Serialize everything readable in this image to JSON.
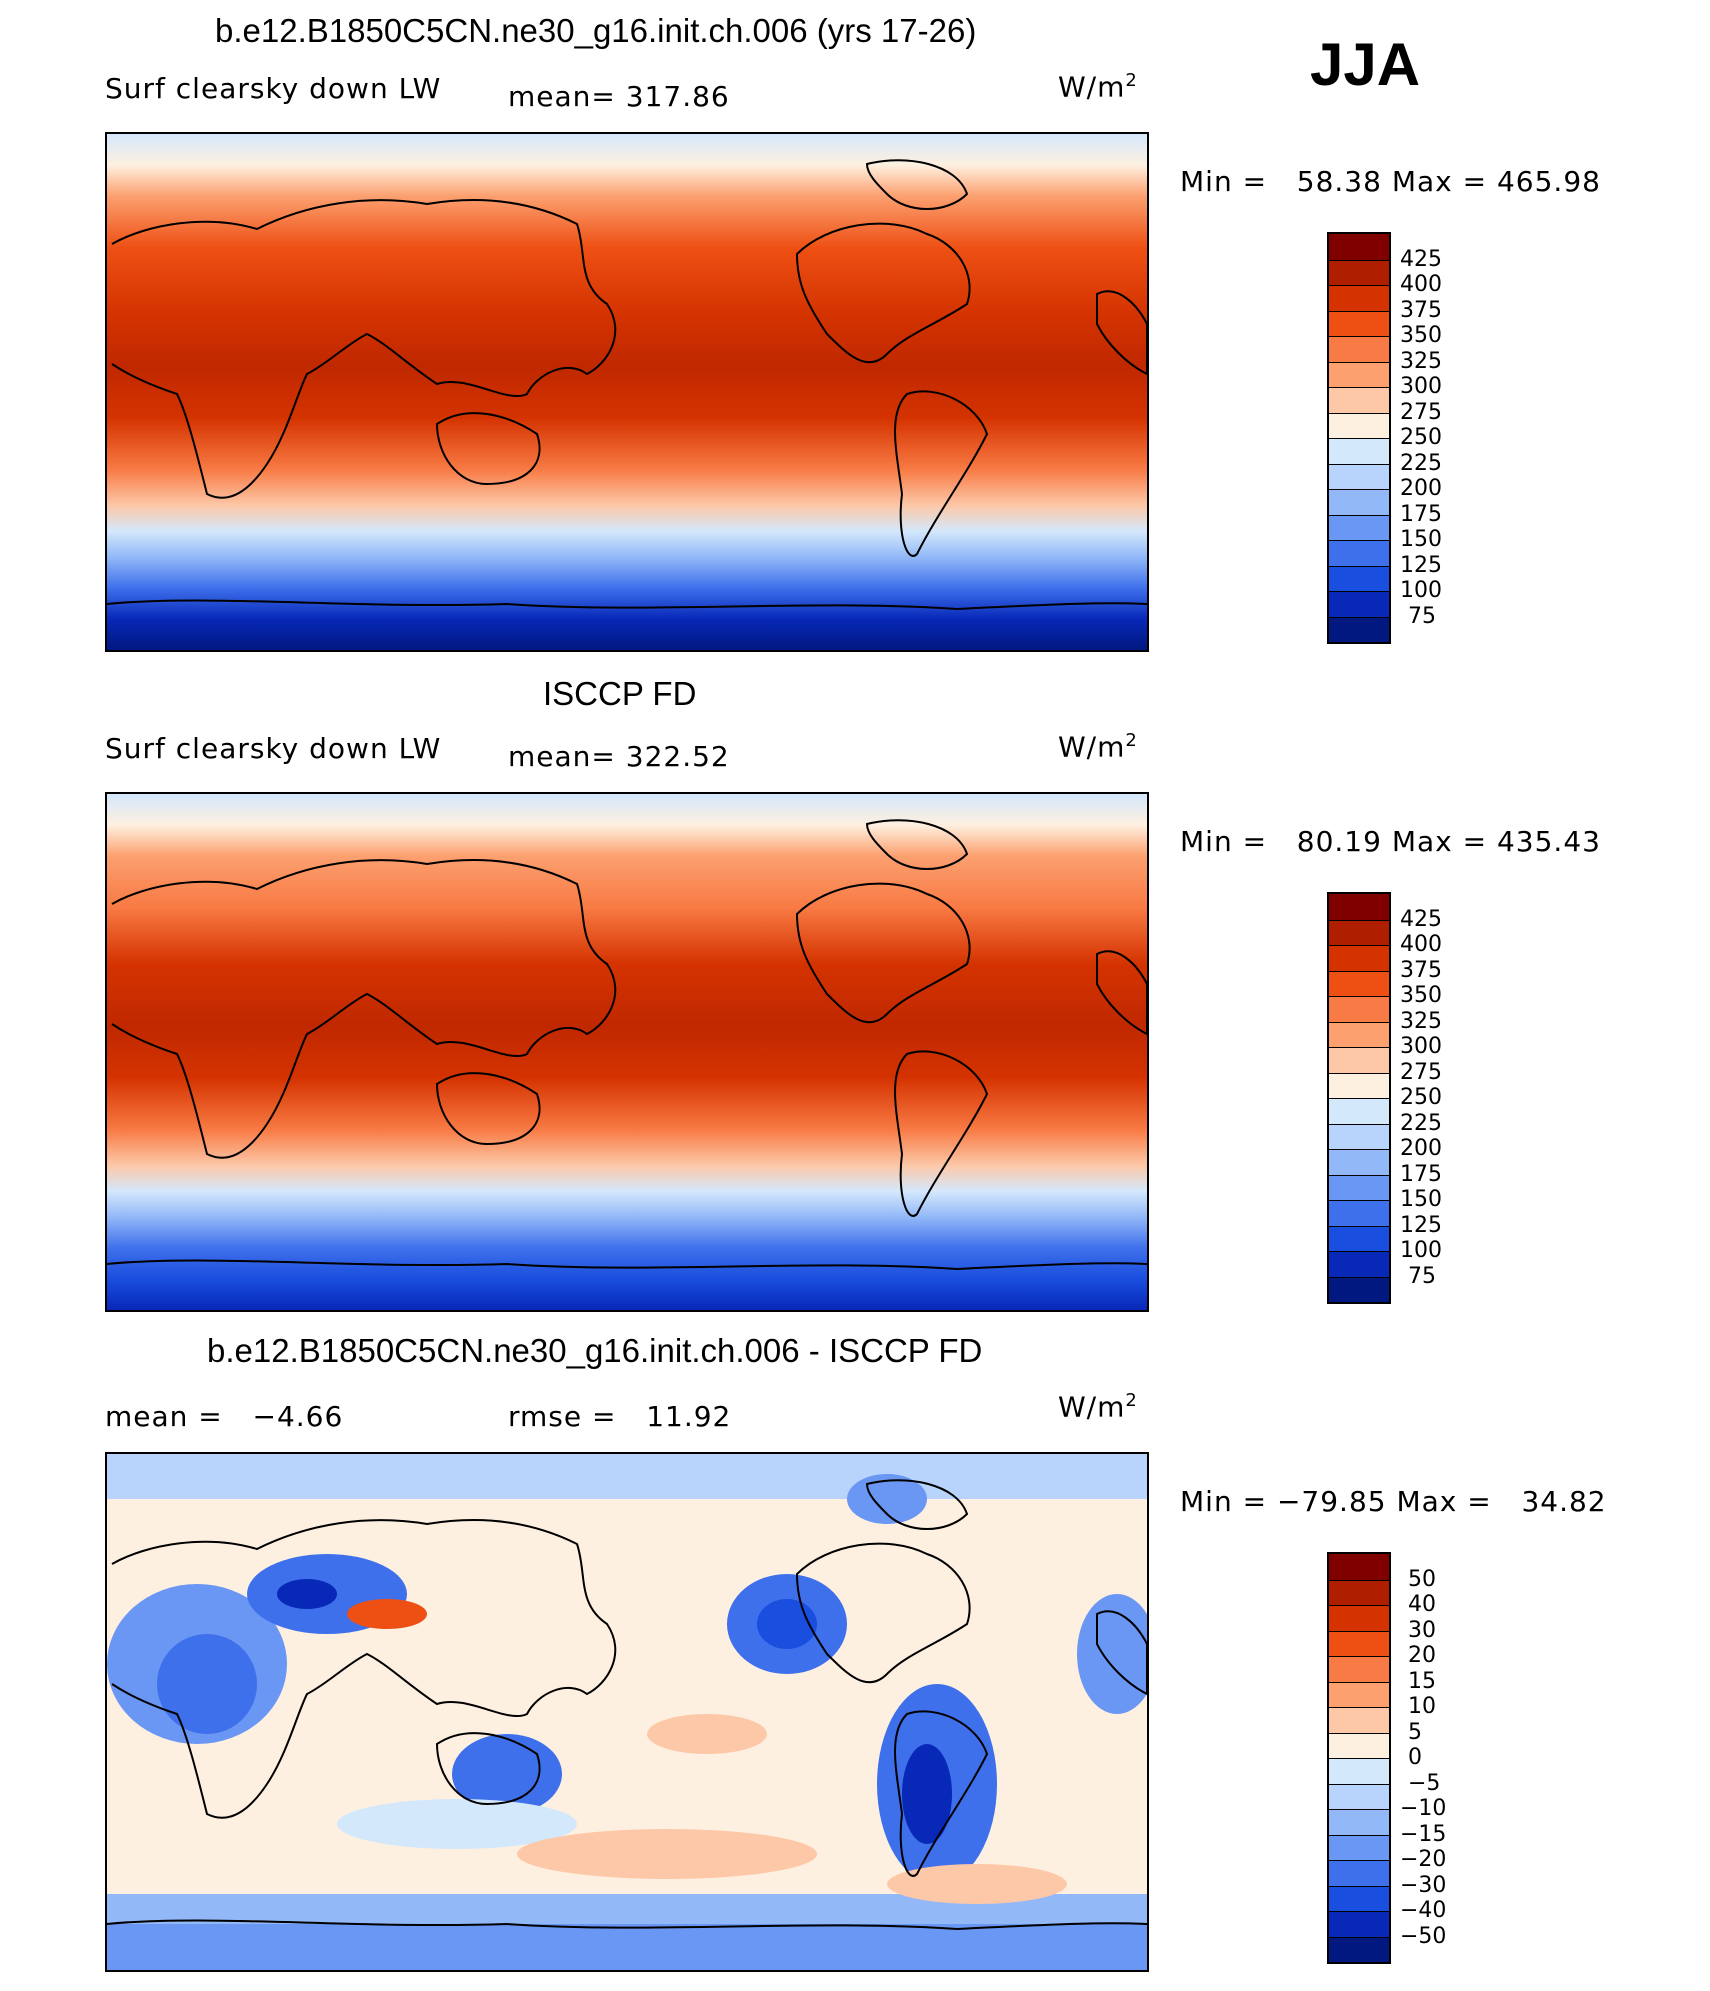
{
  "season": "JJA",
  "units_base": "W/m",
  "units_exp": "2",
  "panels": [
    {
      "title": "b.e12.B1850C5CN.ne30_g16.init.ch.006 (yrs 17-26)",
      "variable": "Surf clearsky down LW",
      "stat_text": "mean= 317.86",
      "min_label": "Min =",
      "min": "58.38",
      "max_label": "Max =",
      "max": "465.98",
      "colorbar_labels": [
        "425",
        "400",
        "375",
        "350",
        "325",
        "300",
        "275",
        "250",
        "225",
        "200",
        "175",
        "150",
        "125",
        "100",
        "75"
      ]
    },
    {
      "title": "ISCCP FD",
      "variable": "Surf clearsky down LW",
      "stat_text": "mean= 322.52",
      "min_label": "Min =",
      "min": "80.19",
      "max_label": "Max =",
      "max": "435.43",
      "colorbar_labels": [
        "425",
        "400",
        "375",
        "350",
        "325",
        "300",
        "275",
        "250",
        "225",
        "200",
        "175",
        "150",
        "125",
        "100",
        "75"
      ]
    },
    {
      "title": "b.e12.B1850C5CN.ne30_g16.init.ch.006 - ISCCP FD",
      "mean_text": "mean =",
      "mean_value": "−4.66",
      "rmse_text": "rmse =",
      "rmse_value": "11.92",
      "min_label": "Min =",
      "min": "−79.85",
      "max_label": "Max =",
      "max": "34.82",
      "colorbar_labels": [
        "50",
        "40",
        "30",
        "20",
        "15",
        "10",
        "5",
        "0",
        "−5",
        "−10",
        "−15",
        "−20",
        "−30",
        "−40",
        "−50"
      ]
    }
  ],
  "chart_data": [
    {
      "type": "heatmap",
      "title": "b.e12.B1850C5CN.ne30_g16.init.ch.006 (yrs 17-26)",
      "field": "Surf clearsky down LW",
      "units": "W/m2",
      "mean": 317.86,
      "min": 58.38,
      "max": 465.98,
      "levels": [
        75,
        100,
        125,
        150,
        175,
        200,
        225,
        250,
        275,
        300,
        325,
        350,
        375,
        400,
        425
      ],
      "projection": "cylindrical equidistant, centered on 180"
    },
    {
      "type": "heatmap",
      "title": "ISCCP FD",
      "field": "Surf clearsky down LW",
      "units": "W/m2",
      "mean": 322.52,
      "min": 80.19,
      "max": 435.43,
      "levels": [
        75,
        100,
        125,
        150,
        175,
        200,
        225,
        250,
        275,
        300,
        325,
        350,
        375,
        400,
        425
      ],
      "projection": "cylindrical equidistant, centered on 180"
    },
    {
      "type": "heatmap",
      "title": "b.e12.B1850C5CN.ne30_g16.init.ch.006 - ISCCP FD",
      "units": "W/m2",
      "mean": -4.66,
      "rmse": 11.92,
      "min": -79.85,
      "max": 34.82,
      "levels": [
        -50,
        -40,
        -30,
        -20,
        -15,
        -10,
        -5,
        0,
        5,
        10,
        15,
        20,
        30,
        40,
        50
      ],
      "projection": "cylindrical equidistant, centered on 180"
    }
  ],
  "colors": {
    "abs_scale": [
      "#800000",
      "#b01e00",
      "#d43300",
      "#ee5014",
      "#f87a44",
      "#fca070",
      "#fcc8a8",
      "#fef0e0",
      "#d4e8fc",
      "#b8d4fc",
      "#92b8f8",
      "#6a96f4",
      "#3f70ec",
      "#1a4ede",
      "#0828b8",
      "#001880"
    ],
    "diff_scale": [
      "#800000",
      "#b01e00",
      "#d43300",
      "#ee5014",
      "#f87a44",
      "#fca070",
      "#fcc8a8",
      "#fef0e0",
      "#d4e8fc",
      "#b8d4fc",
      "#92b8f8",
      "#6a96f4",
      "#3f70ec",
      "#1a4ede",
      "#0828b8",
      "#001880"
    ]
  }
}
